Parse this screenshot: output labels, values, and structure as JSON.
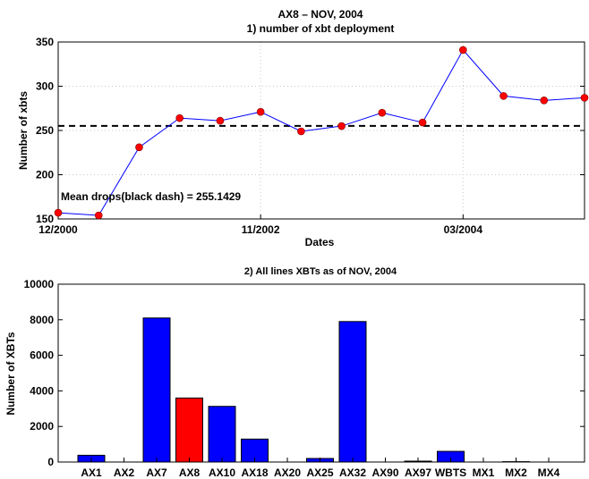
{
  "figure": {
    "title_line1": "AX8 – NOV, 2004",
    "title_line2": "1) number of xbt deployment"
  },
  "chart_data": [
    {
      "type": "line",
      "title": "1) number of xbt deployment",
      "xlabel": "Dates",
      "ylabel": "Number of xbts",
      "ylim": [
        150,
        350
      ],
      "yticks": [
        150,
        200,
        250,
        300,
        350
      ],
      "x_tick_labels": [
        {
          "label": "12/2000",
          "x": 0
        },
        {
          "label": "11/2002",
          "x": 5
        },
        {
          "label": "03/2004",
          "x": 10
        }
      ],
      "xlim": [
        0,
        13
      ],
      "grid": true,
      "series": [
        {
          "color": "#0000ff",
          "marker_color": "#ff0000",
          "x": [
            0,
            1,
            2,
            3,
            4,
            5,
            6,
            7,
            8,
            9,
            10,
            11,
            12,
            13
          ],
          "values": [
            157,
            154,
            231,
            264,
            261,
            271,
            249,
            255,
            270,
            259,
            341,
            289,
            284,
            287
          ]
        }
      ],
      "mean_line": {
        "value": 255.1429,
        "color": "#000000",
        "style": "dashed"
      },
      "annotation": "Mean drops(black dash) = 255.1429"
    },
    {
      "type": "bar",
      "title": "2) All lines XBTs as of NOV, 2004",
      "xlabel": "",
      "ylabel": "Number of XBTs",
      "ylim": [
        0,
        10000
      ],
      "yticks": [
        0,
        2000,
        4000,
        6000,
        8000,
        10000
      ],
      "grid": false,
      "categories": [
        "AX1",
        "AX2",
        "AX7",
        "AX8",
        "AX10",
        "AX18",
        "AX20",
        "AX25",
        "AX32",
        "AX90",
        "AX97",
        "WBTS",
        "MX1",
        "MX2",
        "MX4"
      ],
      "values": [
        380,
        0,
        8100,
        3600,
        3130,
        1290,
        0,
        200,
        7900,
        0,
        50,
        600,
        0,
        20,
        0
      ],
      "colors": [
        "#0000ff",
        "#0000ff",
        "#0000ff",
        "#ff0000",
        "#0000ff",
        "#0000ff",
        "#0000ff",
        "#0000ff",
        "#0000ff",
        "#0000ff",
        "#0000ff",
        "#0000ff",
        "#0000ff",
        "#0000ff",
        "#0000ff"
      ]
    }
  ]
}
